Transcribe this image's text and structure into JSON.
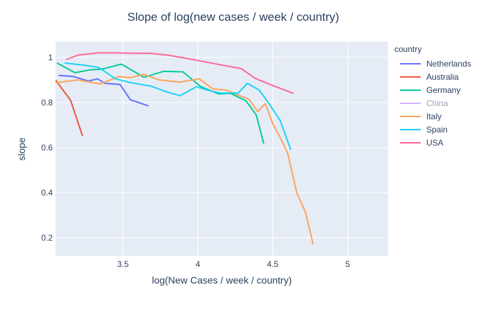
{
  "chart_data": {
    "type": "line",
    "title": "Slope of log(new cases / week / country)",
    "xlabel": "log(New Cases / week / country)",
    "ylabel": "slope",
    "xlim": [
      3.05,
      5.27
    ],
    "ylim": [
      0.12,
      1.07
    ],
    "x_ticks": [
      "3.5",
      "4",
      "4.5",
      "5"
    ],
    "y_ticks": [
      "0.2",
      "0.4",
      "0.6",
      "0.8",
      "1"
    ],
    "grid": true,
    "legend_position": "right",
    "legend_title": "country",
    "series": [
      {
        "name": "Netherlands",
        "color": "#636efa",
        "hidden": false,
        "x": [
          3.07,
          3.17,
          3.27,
          3.33,
          3.38,
          3.48,
          3.55,
          3.67
        ],
        "y": [
          0.92,
          0.915,
          0.895,
          0.905,
          0.885,
          0.88,
          0.812,
          0.785
        ]
      },
      {
        "name": "Australia",
        "color": "#ef553b",
        "hidden": false,
        "x": [
          3.05,
          3.15,
          3.23
        ],
        "y": [
          0.9,
          0.81,
          0.652
        ]
      },
      {
        "name": "Germany",
        "color": "#00cc96",
        "hidden": false,
        "x": [
          3.06,
          3.18,
          3.28,
          3.36,
          3.49,
          3.64,
          3.77,
          3.9,
          4.02,
          4.14,
          4.22,
          4.32,
          4.39,
          4.44
        ],
        "y": [
          0.975,
          0.932,
          0.945,
          0.948,
          0.97,
          0.912,
          0.938,
          0.936,
          0.87,
          0.838,
          0.84,
          0.808,
          0.745,
          0.617
        ]
      },
      {
        "name": "China",
        "color": "#ab63fa",
        "hidden": true,
        "x": [],
        "y": []
      },
      {
        "name": "Italy",
        "color": "#ffa15a",
        "hidden": false,
        "x": [
          3.05,
          3.2,
          3.35,
          3.47,
          3.55,
          3.64,
          3.74,
          3.88,
          4.01,
          4.1,
          4.19,
          4.25,
          4.34,
          4.4,
          4.45,
          4.5,
          4.55,
          4.6,
          4.66,
          4.72,
          4.77
        ],
        "y": [
          0.887,
          0.9,
          0.882,
          0.915,
          0.91,
          0.925,
          0.9,
          0.89,
          0.905,
          0.86,
          0.855,
          0.838,
          0.815,
          0.76,
          0.795,
          0.705,
          0.645,
          0.575,
          0.4,
          0.31,
          0.17
        ]
      },
      {
        "name": "Spain",
        "color": "#19d3f3",
        "hidden": false,
        "x": [
          3.11,
          3.23,
          3.34,
          3.45,
          3.55,
          3.69,
          3.78,
          3.88,
          3.99,
          4.08,
          4.15,
          4.27,
          4.33,
          4.41,
          4.48,
          4.55,
          4.62
        ],
        "y": [
          0.975,
          0.966,
          0.955,
          0.905,
          0.888,
          0.872,
          0.85,
          0.83,
          0.87,
          0.852,
          0.842,
          0.842,
          0.885,
          0.855,
          0.79,
          0.72,
          0.59
        ]
      },
      {
        "name": "USA",
        "color": "#ff6692",
        "hidden": false,
        "x": [
          3.12,
          3.2,
          3.33,
          3.45,
          3.58,
          3.68,
          3.8,
          3.93,
          4.05,
          4.17,
          4.29,
          4.38,
          4.5,
          4.64
        ],
        "y": [
          0.99,
          1.01,
          1.02,
          1.02,
          1.018,
          1.018,
          1.01,
          0.995,
          0.98,
          0.965,
          0.95,
          0.908,
          0.875,
          0.84
        ]
      }
    ]
  }
}
